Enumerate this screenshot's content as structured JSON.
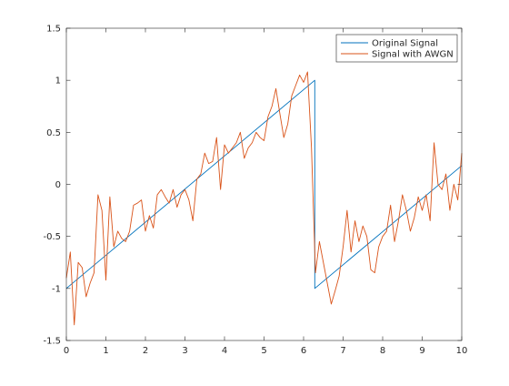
{
  "chart_data": {
    "type": "line",
    "xlim": [
      0,
      10
    ],
    "ylim": [
      -1.5,
      1.5
    ],
    "xticks": [
      0,
      1,
      2,
      3,
      4,
      5,
      6,
      7,
      8,
      9,
      10
    ],
    "yticks": [
      -1.5,
      -1,
      -0.5,
      0,
      0.5,
      1,
      1.5
    ],
    "xtick_labels": [
      "0",
      "1",
      "2",
      "3",
      "4",
      "5",
      "6",
      "7",
      "8",
      "9",
      "10"
    ],
    "ytick_labels": [
      "-1.5",
      "-1",
      "-0.5",
      "0",
      "0.5",
      "1",
      "1.5"
    ],
    "grid": false,
    "legend_position": "top-right",
    "series": [
      {
        "name": "Original Signal",
        "color": "#0072BD",
        "x": [
          0,
          6.283,
          6.283,
          10
        ],
        "y": [
          -1.0,
          1.0,
          -1.0,
          0.18
        ]
      },
      {
        "name": "Signal with AWGN",
        "color": "#D95319",
        "x": [
          0,
          0.1,
          0.2,
          0.3,
          0.4,
          0.5,
          0.6,
          0.7,
          0.8,
          0.9,
          1.0,
          1.1,
          1.2,
          1.3,
          1.4,
          1.5,
          1.6,
          1.7,
          1.8,
          1.9,
          2.0,
          2.1,
          2.2,
          2.3,
          2.4,
          2.5,
          2.6,
          2.7,
          2.8,
          2.9,
          3.0,
          3.1,
          3.2,
          3.3,
          3.4,
          3.5,
          3.6,
          3.7,
          3.8,
          3.9,
          4.0,
          4.1,
          4.2,
          4.3,
          4.4,
          4.5,
          4.6,
          4.7,
          4.8,
          4.9,
          5.0,
          5.1,
          5.2,
          5.3,
          5.4,
          5.5,
          5.6,
          5.7,
          5.8,
          5.9,
          6.0,
          6.1,
          6.2,
          6.3,
          6.4,
          6.5,
          6.6,
          6.7,
          6.8,
          6.9,
          7.0,
          7.1,
          7.2,
          7.3,
          7.4,
          7.5,
          7.6,
          7.7,
          7.8,
          7.9,
          8.0,
          8.1,
          8.2,
          8.3,
          8.4,
          8.5,
          8.6,
          8.7,
          8.8,
          8.9,
          9.0,
          9.1,
          9.2,
          9.3,
          9.4,
          9.5,
          9.6,
          9.7,
          9.8,
          9.9,
          10.0
        ],
        "y": [
          -0.9,
          -0.65,
          -1.35,
          -0.75,
          -0.8,
          -1.08,
          -0.95,
          -0.85,
          -0.1,
          -0.25,
          -0.92,
          -0.12,
          -0.6,
          -0.45,
          -0.52,
          -0.55,
          -0.45,
          -0.2,
          -0.18,
          -0.15,
          -0.45,
          -0.3,
          -0.42,
          -0.1,
          -0.05,
          -0.12,
          -0.18,
          -0.05,
          -0.22,
          -0.1,
          -0.05,
          -0.15,
          -0.35,
          0.05,
          0.1,
          0.3,
          0.2,
          0.22,
          0.45,
          -0.05,
          0.38,
          0.3,
          0.35,
          0.4,
          0.5,
          0.25,
          0.35,
          0.4,
          0.5,
          0.45,
          0.42,
          0.65,
          0.75,
          0.92,
          0.68,
          0.45,
          0.58,
          0.85,
          0.95,
          1.05,
          0.98,
          1.08,
          0.35,
          -0.85,
          -0.55,
          -0.75,
          -0.95,
          -1.15,
          -1.02,
          -0.88,
          -0.6,
          -0.25,
          -0.65,
          -0.35,
          -0.55,
          -0.4,
          -0.5,
          -0.82,
          -0.85,
          -0.6,
          -0.5,
          -0.45,
          -0.2,
          -0.55,
          -0.35,
          -0.1,
          -0.25,
          -0.45,
          -0.32,
          -0.12,
          -0.25,
          -0.1,
          -0.35,
          0.4,
          0.0,
          -0.05,
          0.1,
          -0.25,
          0.0,
          -0.15,
          0.3
        ]
      }
    ]
  }
}
